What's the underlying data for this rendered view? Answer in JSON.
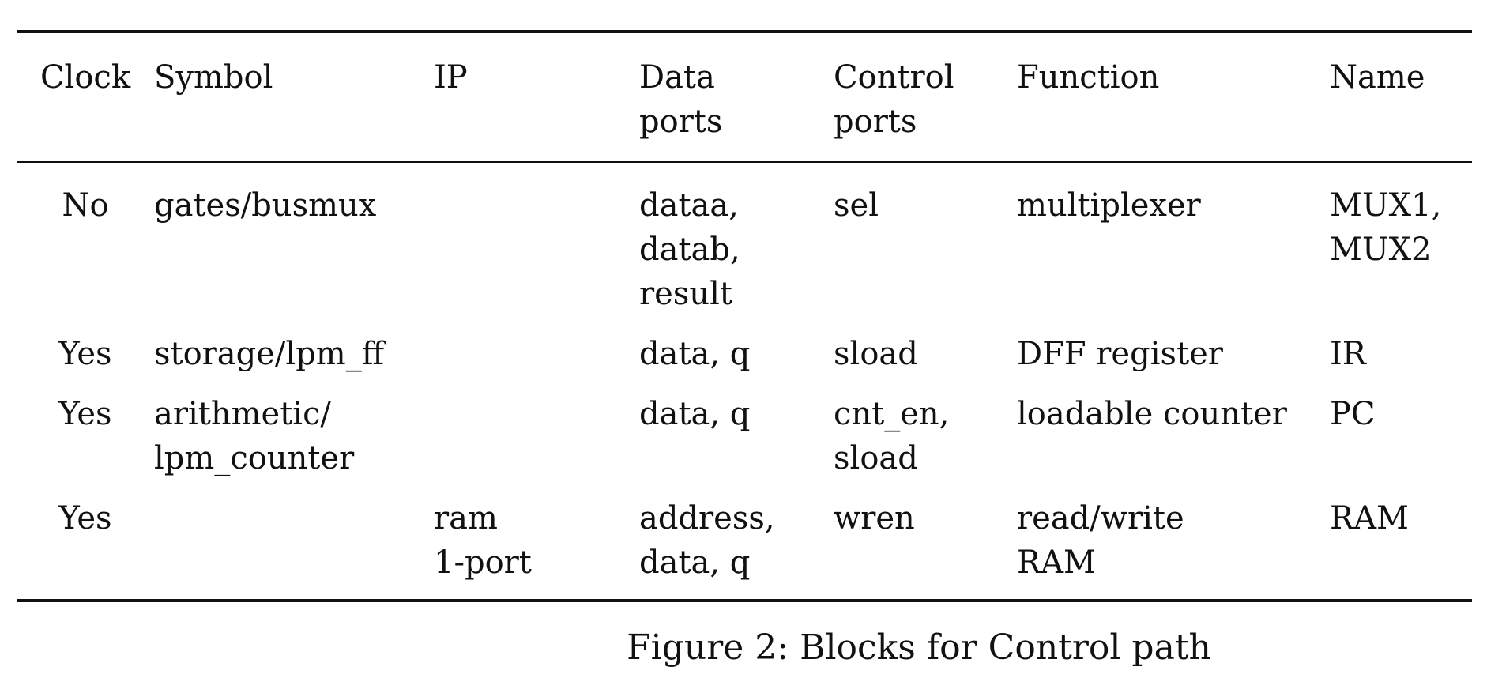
{
  "table": {
    "headers": [
      [
        "Clock"
      ],
      [
        "Symbol"
      ],
      [
        "IP"
      ],
      [
        "Data",
        "ports"
      ],
      [
        "Control",
        "ports"
      ],
      [
        "Function"
      ],
      [
        "Name"
      ]
    ],
    "rows": [
      [
        [
          "No"
        ],
        [
          "gates/busmux"
        ],
        [],
        [
          "dataa,",
          "datab,",
          "result"
        ],
        [
          "sel"
        ],
        [
          "multiplexer"
        ],
        [
          "MUX1,",
          "MUX2"
        ]
      ],
      [
        [
          "Yes"
        ],
        [
          "storage/lpm_ff"
        ],
        [],
        [
          "data, q"
        ],
        [
          "sload"
        ],
        [
          "DFF register"
        ],
        [
          "IR"
        ]
      ],
      [
        [
          "Yes"
        ],
        [
          "arithmetic/",
          "lpm_counter"
        ],
        [],
        [
          "data, q"
        ],
        [
          "cnt_en,",
          "sload"
        ],
        [
          "loadable counter"
        ],
        [
          "PC"
        ]
      ],
      [
        [
          "Yes"
        ],
        [],
        [
          "ram",
          "1-port"
        ],
        [
          "address,",
          "data, q"
        ],
        [
          "wren"
        ],
        [
          "read/write",
          "RAM"
        ],
        [
          "RAM"
        ]
      ]
    ]
  },
  "caption": "Figure 2: Blocks for Control path"
}
